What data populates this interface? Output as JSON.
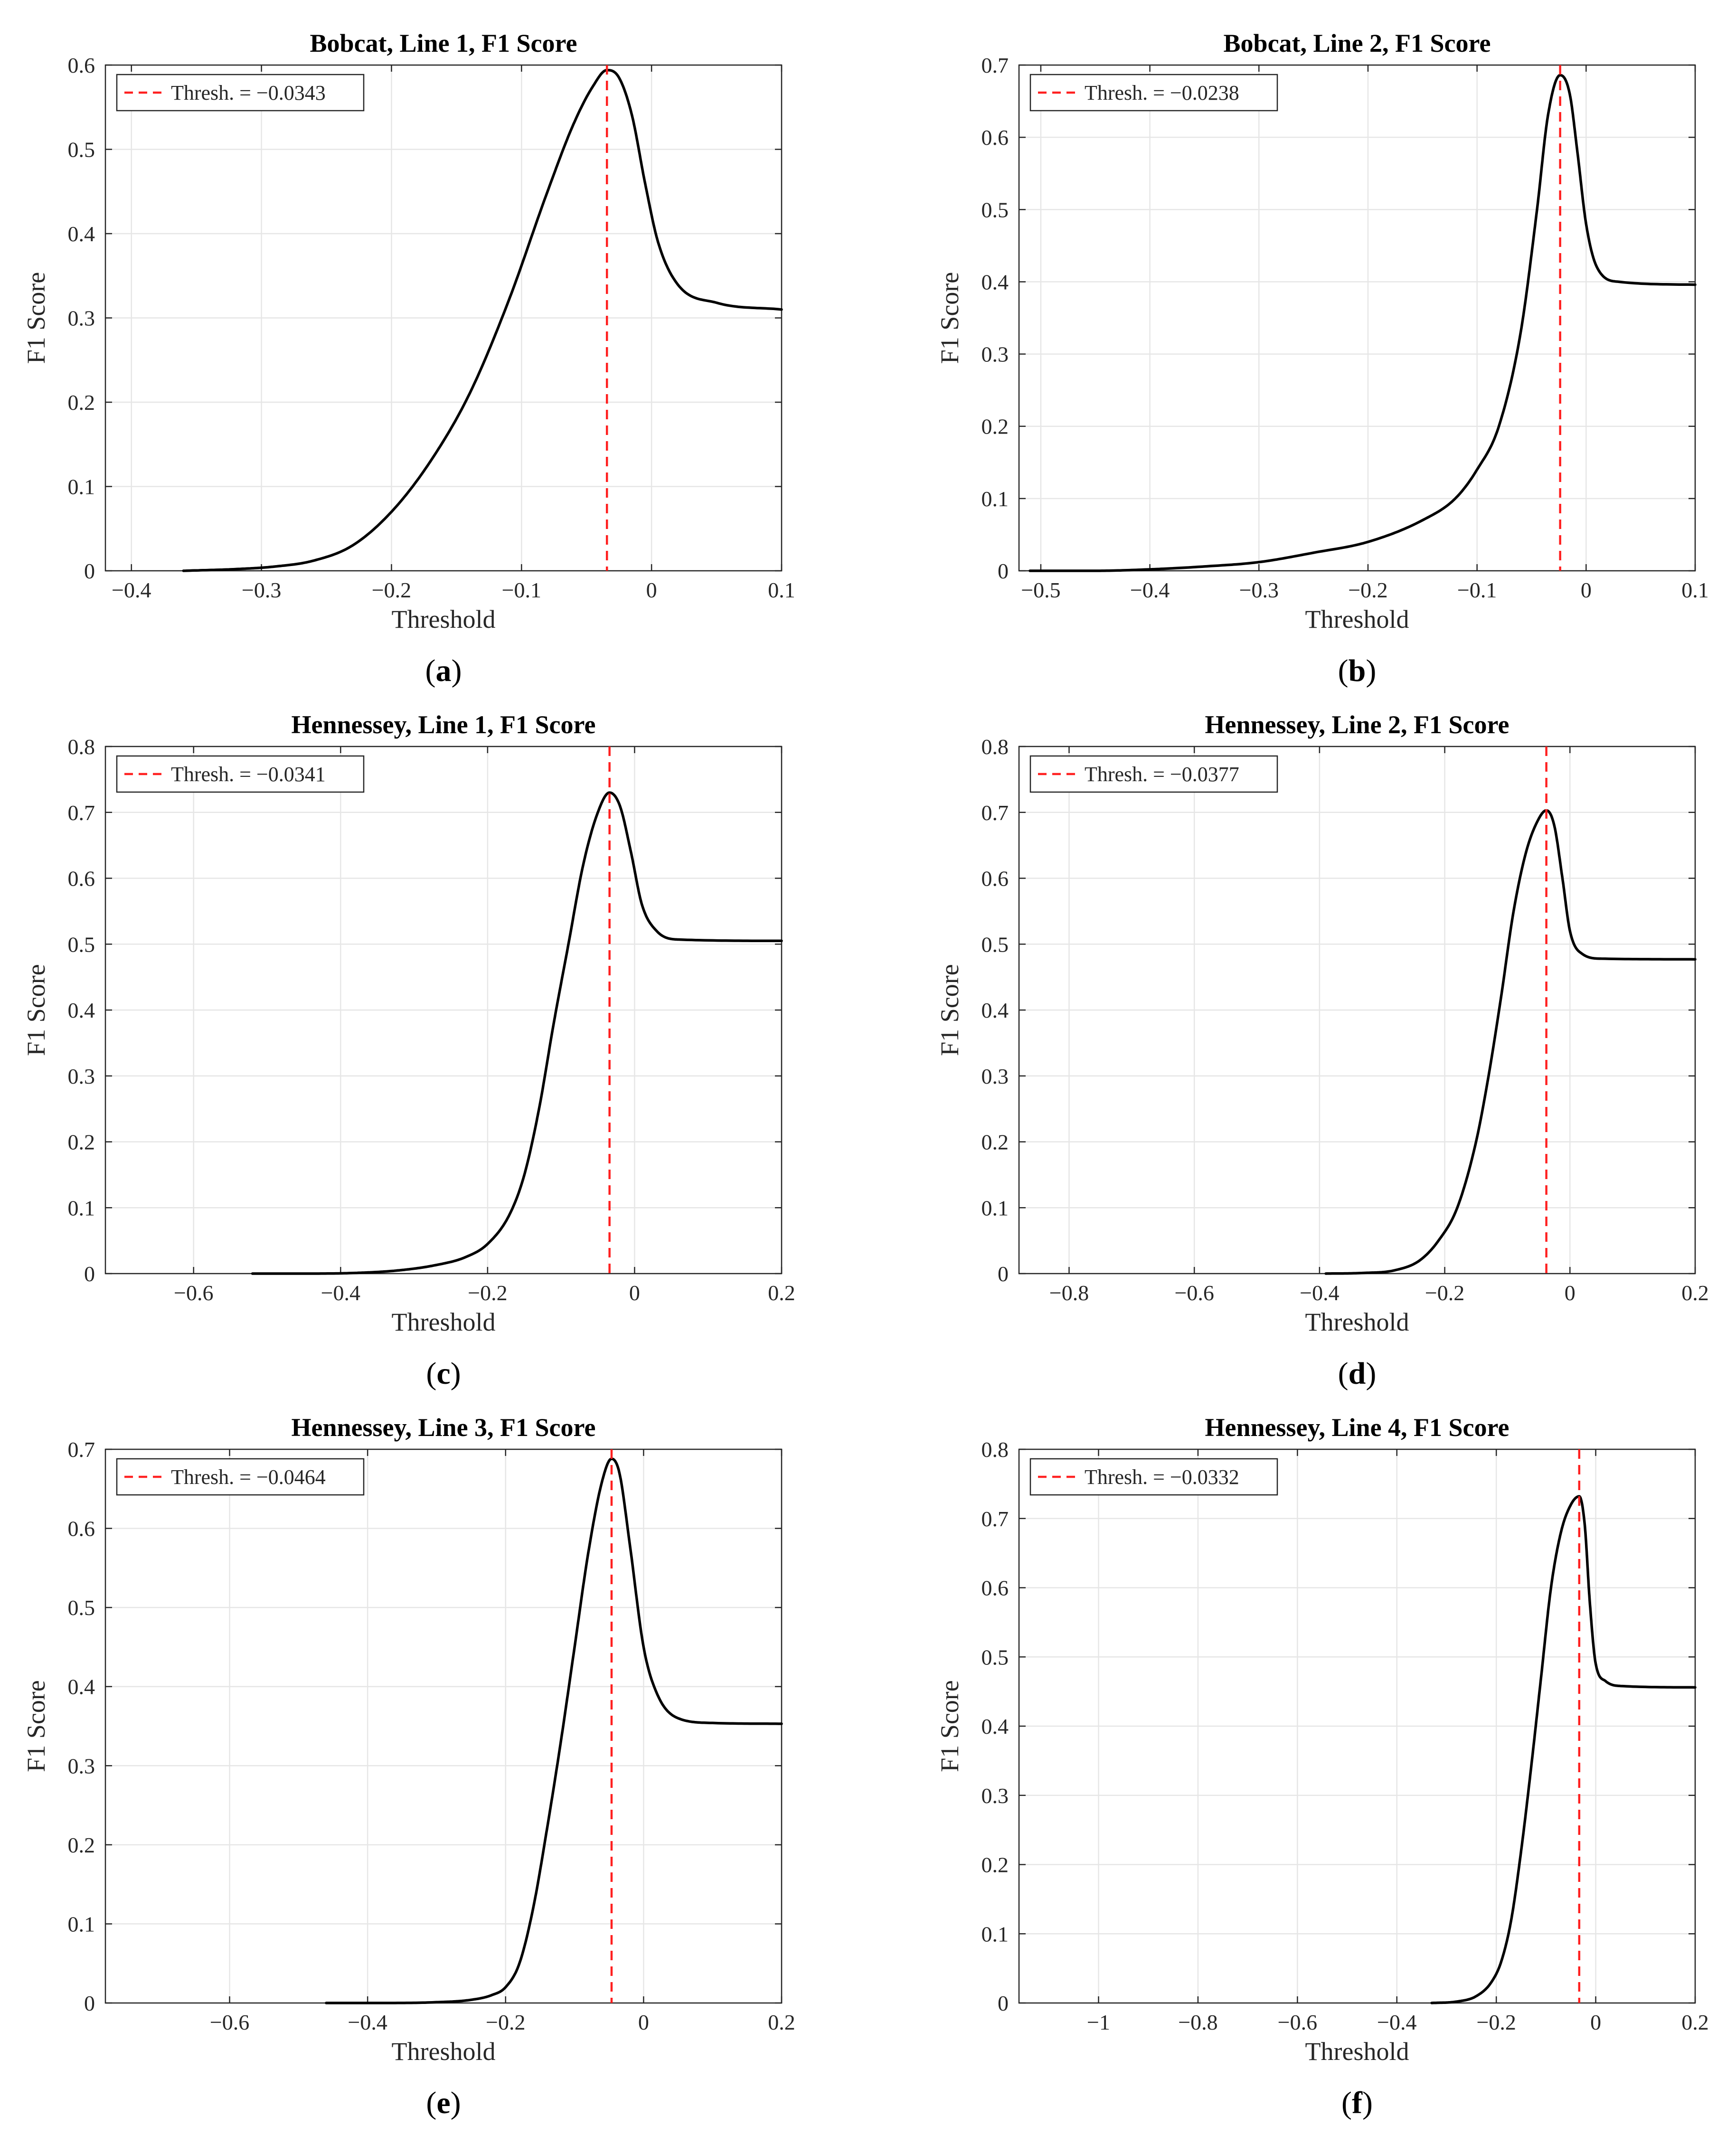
{
  "figure": {
    "colors": {
      "curve": "#000000",
      "threshold_line": "#ff2020",
      "grid": "#e6e6e6",
      "axis": "#262626",
      "legend_border": "#262626"
    }
  },
  "chart_data": [
    {
      "type": "line",
      "panel_label": "a",
      "title": "Bobcat, Line 1, F1 Score",
      "xlabel": "Threshold",
      "ylabel": "F1 Score",
      "xlim": [
        -0.42,
        0.1
      ],
      "ylim": [
        0,
        0.6
      ],
      "xticks": [
        -0.4,
        -0.3,
        -0.2,
        -0.1,
        0,
        0.1
      ],
      "xtick_labels": [
        "−0.4",
        "−0.3",
        "−0.2",
        "−0.1",
        "0",
        "0.1"
      ],
      "yticks": [
        0,
        0.1,
        0.2,
        0.3,
        0.4,
        0.5,
        0.6
      ],
      "ytick_labels": [
        "0",
        "0.1",
        "0.2",
        "0.3",
        "0.4",
        "0.5",
        "0.6"
      ],
      "grid": true,
      "legend": {
        "label": "Thresh. = −0.0343",
        "location": "top-left"
      },
      "threshold": -0.0343,
      "series": [
        {
          "name": "F1 Score",
          "x": [
            -0.36,
            -0.32,
            -0.29,
            -0.26,
            -0.23,
            -0.2,
            -0.17,
            -0.14,
            -0.11,
            -0.08,
            -0.06,
            -0.045,
            -0.0343,
            -0.025,
            -0.015,
            -0.005,
            0.005,
            0.02,
            0.05,
            0.1
          ],
          "y": [
            0.0,
            0.002,
            0.005,
            0.012,
            0.03,
            0.07,
            0.13,
            0.21,
            0.32,
            0.45,
            0.53,
            0.575,
            0.594,
            0.585,
            0.54,
            0.46,
            0.39,
            0.34,
            0.318,
            0.31
          ]
        }
      ]
    },
    {
      "type": "line",
      "panel_label": "b",
      "title": "Bobcat, Line 2, F1 Score",
      "xlabel": "Threshold",
      "ylabel": "F1 Score",
      "xlim": [
        -0.52,
        0.1
      ],
      "ylim": [
        0,
        0.7
      ],
      "xticks": [
        -0.5,
        -0.4,
        -0.3,
        -0.2,
        -0.1,
        0,
        0.1
      ],
      "xtick_labels": [
        "−0.5",
        "−0.4",
        "−0.3",
        "−0.2",
        "−0.1",
        "0",
        "0.1"
      ],
      "yticks": [
        0,
        0.1,
        0.2,
        0.3,
        0.4,
        0.5,
        0.6,
        0.7
      ],
      "ytick_labels": [
        "0",
        "0.1",
        "0.2",
        "0.3",
        "0.4",
        "0.5",
        "0.6",
        "0.7"
      ],
      "grid": true,
      "legend": {
        "label": "Thresh. = −0.0238",
        "location": "top-left"
      },
      "threshold": -0.0238,
      "series": [
        {
          "name": "F1 Score",
          "x": [
            -0.51,
            -0.45,
            -0.4,
            -0.35,
            -0.3,
            -0.25,
            -0.2,
            -0.15,
            -0.12,
            -0.1,
            -0.08,
            -0.06,
            -0.045,
            -0.035,
            -0.0238,
            -0.015,
            -0.008,
            0.0,
            0.01,
            0.03,
            0.1
          ],
          "y": [
            0.0,
            0.0,
            0.002,
            0.006,
            0.012,
            0.025,
            0.04,
            0.07,
            0.1,
            0.14,
            0.2,
            0.33,
            0.5,
            0.63,
            0.686,
            0.66,
            0.58,
            0.48,
            0.42,
            0.4,
            0.396
          ]
        }
      ]
    },
    {
      "type": "line",
      "panel_label": "c",
      "title": "Hennessey, Line 1, F1 Score",
      "xlabel": "Threshold",
      "ylabel": "F1 Score",
      "xlim": [
        -0.72,
        0.2
      ],
      "ylim": [
        0,
        0.8
      ],
      "xticks": [
        -0.6,
        -0.4,
        -0.2,
        0,
        0.2
      ],
      "xtick_labels": [
        "−0.6",
        "−0.4",
        "−0.2",
        "0",
        "0.2"
      ],
      "yticks": [
        0,
        0.1,
        0.2,
        0.3,
        0.4,
        0.5,
        0.6,
        0.7,
        0.8
      ],
      "ytick_labels": [
        "0",
        "0.1",
        "0.2",
        "0.3",
        "0.4",
        "0.5",
        "0.6",
        "0.7",
        "0.8"
      ],
      "grid": true,
      "legend": {
        "label": "Thresh. = −0.0341",
        "location": "top-left"
      },
      "threshold": -0.0341,
      "series": [
        {
          "name": "F1 Score",
          "x": [
            -0.52,
            -0.45,
            -0.38,
            -0.32,
            -0.27,
            -0.23,
            -0.2,
            -0.17,
            -0.15,
            -0.13,
            -0.11,
            -0.09,
            -0.07,
            -0.05,
            -0.0341,
            -0.02,
            -0.005,
            0.01,
            0.03,
            0.06,
            0.2
          ],
          "y": [
            0.0,
            0.0,
            0.001,
            0.005,
            0.013,
            0.025,
            0.045,
            0.09,
            0.15,
            0.25,
            0.38,
            0.5,
            0.62,
            0.7,
            0.73,
            0.71,
            0.64,
            0.56,
            0.52,
            0.507,
            0.505
          ]
        }
      ]
    },
    {
      "type": "line",
      "panel_label": "d",
      "title": "Hennessey, Line 2, F1 Score",
      "xlabel": "Threshold",
      "ylabel": "F1 Score",
      "xlim": [
        -0.88,
        0.2
      ],
      "ylim": [
        0,
        0.8
      ],
      "xticks": [
        -0.8,
        -0.6,
        -0.4,
        -0.2,
        0,
        0.2
      ],
      "xtick_labels": [
        "−0.8",
        "−0.6",
        "−0.4",
        "−0.2",
        "0",
        "0.2"
      ],
      "yticks": [
        0,
        0.1,
        0.2,
        0.3,
        0.4,
        0.5,
        0.6,
        0.7,
        0.8
      ],
      "ytick_labels": [
        "0",
        "0.1",
        "0.2",
        "0.3",
        "0.4",
        "0.5",
        "0.6",
        "0.7",
        "0.8"
      ],
      "grid": true,
      "legend": {
        "label": "Thresh. = −0.0377",
        "location": "top-left"
      },
      "threshold": -0.0377,
      "series": [
        {
          "name": "F1 Score",
          "x": [
            -0.39,
            -0.33,
            -0.28,
            -0.24,
            -0.21,
            -0.18,
            -0.15,
            -0.13,
            -0.11,
            -0.09,
            -0.07,
            -0.05,
            -0.0377,
            -0.025,
            -0.012,
            0.0,
            0.02,
            0.05,
            0.2
          ],
          "y": [
            0.0,
            0.001,
            0.005,
            0.02,
            0.05,
            0.1,
            0.2,
            0.3,
            0.42,
            0.55,
            0.64,
            0.69,
            0.703,
            0.68,
            0.6,
            0.52,
            0.485,
            0.478,
            0.477
          ]
        }
      ]
    },
    {
      "type": "line",
      "panel_label": "e",
      "title": "Hennessey, Line 3, F1 Score",
      "xlabel": "Threshold",
      "ylabel": "F1 Score",
      "xlim": [
        -0.78,
        0.2
      ],
      "ylim": [
        0,
        0.7
      ],
      "xticks": [
        -0.6,
        -0.4,
        -0.2,
        0,
        0.2
      ],
      "xtick_labels": [
        "−0.6",
        "−0.4",
        "−0.2",
        "0",
        "0.2"
      ],
      "yticks": [
        0,
        0.1,
        0.2,
        0.3,
        0.4,
        0.5,
        0.6,
        0.7
      ],
      "ytick_labels": [
        "0",
        "0.1",
        "0.2",
        "0.3",
        "0.4",
        "0.5",
        "0.6",
        "0.7"
      ],
      "grid": true,
      "legend": {
        "label": "Thresh. = −0.0464",
        "location": "top-left"
      },
      "threshold": -0.0464,
      "series": [
        {
          "name": "F1 Score",
          "x": [
            -0.46,
            -0.38,
            -0.3,
            -0.25,
            -0.22,
            -0.2,
            -0.18,
            -0.16,
            -0.14,
            -0.12,
            -0.1,
            -0.08,
            -0.06,
            -0.0464,
            -0.035,
            -0.02,
            0.0,
            0.02,
            0.05,
            0.1,
            0.2
          ],
          "y": [
            0.0,
            0.0,
            0.001,
            0.004,
            0.01,
            0.02,
            0.05,
            0.12,
            0.22,
            0.33,
            0.45,
            0.57,
            0.66,
            0.688,
            0.67,
            0.58,
            0.45,
            0.39,
            0.36,
            0.354,
            0.353
          ]
        }
      ]
    },
    {
      "type": "line",
      "panel_label": "f",
      "title": "Hennessey, Line 4, F1 Score",
      "xlabel": "Threshold",
      "ylabel": "F1 Score",
      "xlim": [
        -1.16,
        0.2
      ],
      "ylim": [
        0,
        0.8
      ],
      "xticks": [
        -1,
        -0.8,
        -0.6,
        -0.4,
        -0.2,
        0,
        0.2
      ],
      "xtick_labels": [
        "−1",
        "−0.8",
        "−0.6",
        "−0.4",
        "−0.2",
        "0",
        "0.2"
      ],
      "yticks": [
        0,
        0.1,
        0.2,
        0.3,
        0.4,
        0.5,
        0.6,
        0.7,
        0.8
      ],
      "ytick_labels": [
        "0",
        "0.1",
        "0.2",
        "0.3",
        "0.4",
        "0.5",
        "0.6",
        "0.7",
        "0.8"
      ],
      "grid": true,
      "legend": {
        "label": "Thresh. = −0.0332",
        "location": "top-left"
      },
      "threshold": -0.0332,
      "series": [
        {
          "name": "F1 Score",
          "x": [
            -0.33,
            -0.28,
            -0.24,
            -0.21,
            -0.19,
            -0.17,
            -0.15,
            -0.13,
            -0.11,
            -0.09,
            -0.07,
            -0.05,
            -0.0332,
            -0.022,
            -0.012,
            0.0,
            0.02,
            0.05,
            0.2
          ],
          "y": [
            0.0,
            0.002,
            0.01,
            0.03,
            0.06,
            0.12,
            0.22,
            0.34,
            0.47,
            0.6,
            0.68,
            0.72,
            0.732,
            0.69,
            0.58,
            0.49,
            0.465,
            0.458,
            0.456
          ]
        }
      ]
    }
  ]
}
